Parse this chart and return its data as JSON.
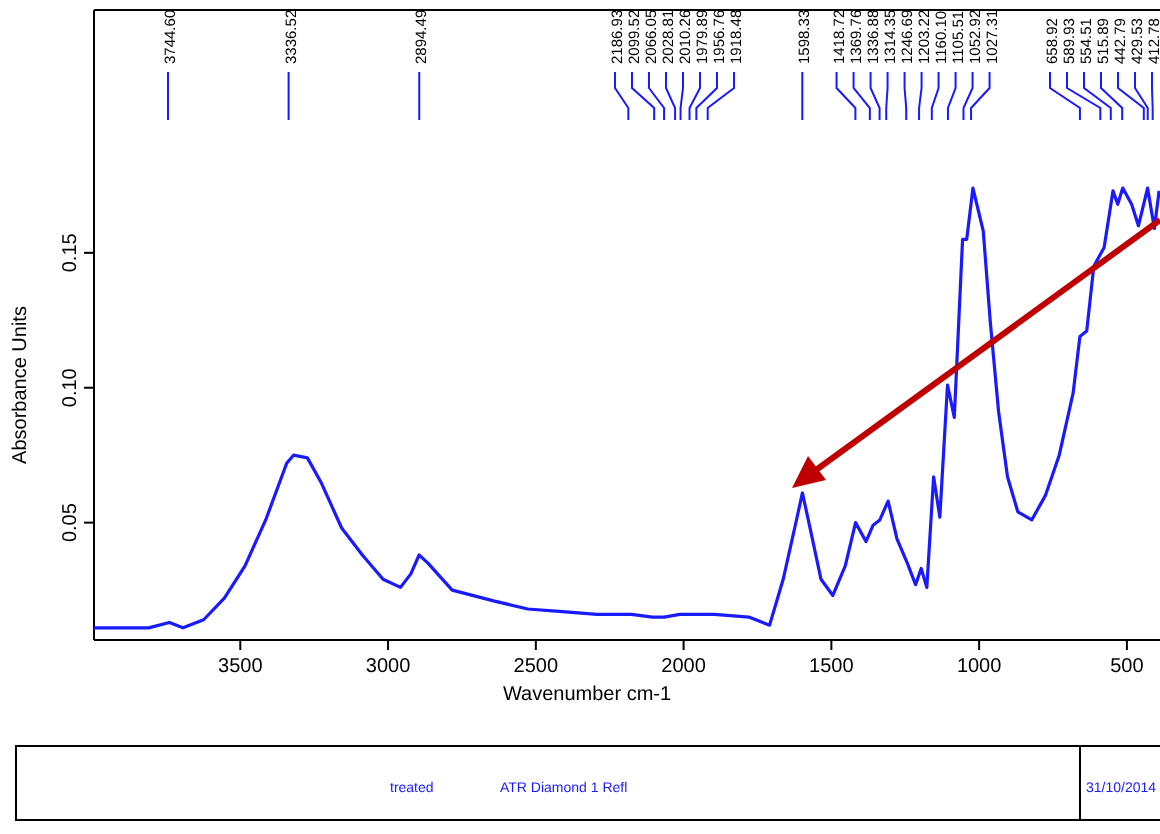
{
  "chart_data": {
    "type": "line",
    "xlabel": "Wavenumber cm-1",
    "ylabel": "Absorbance Units",
    "xlim": [
      3995,
      388
    ],
    "ylim": [
      0.0065,
      0.24
    ],
    "xticks": [
      3500,
      3000,
      2500,
      2000,
      1500,
      1000,
      500
    ],
    "yticks": [
      {
        "value": 0.05,
        "label": "0.05"
      },
      {
        "value": 0.1,
        "label": "0.10"
      },
      {
        "value": 0.15,
        "label": "0.15"
      }
    ],
    "grid": false,
    "x": [
      3995,
      3810,
      3740,
      3694,
      3624,
      3554,
      3484,
      3414,
      3343,
      3320,
      3273,
      3227,
      3157,
      3087,
      3017,
      2958,
      2923,
      2895,
      2865,
      2783,
      2643,
      2527,
      2410,
      2293,
      2176,
      2106,
      2066,
      2013,
      1980,
      1957,
      1918,
      1896,
      1779,
      1709,
      1663,
      1616,
      1598,
      1574,
      1535,
      1495,
      1453,
      1418,
      1383,
      1359,
      1336,
      1308,
      1278,
      1243,
      1215,
      1196,
      1177,
      1154,
      1133,
      1107,
      1084,
      1056,
      1042,
      1021,
      986,
      962,
      934,
      904,
      869,
      822,
      776,
      729,
      682,
      659,
      636,
      612,
      577,
      547,
      531,
      514,
      484,
      461,
      430,
      407,
      391
    ],
    "series": [
      {
        "color": "#1a1aff",
        "values": [
          0.011,
          0.011,
          0.013,
          0.011,
          0.014,
          0.022,
          0.034,
          0.051,
          0.072,
          0.075,
          0.074,
          0.065,
          0.048,
          0.038,
          0.029,
          0.026,
          0.031,
          0.038,
          0.035,
          0.025,
          0.021,
          0.018,
          0.017,
          0.016,
          0.016,
          0.015,
          0.015,
          0.016,
          0.016,
          0.016,
          0.016,
          0.016,
          0.015,
          0.012,
          0.029,
          0.052,
          0.061,
          0.049,
          0.029,
          0.023,
          0.034,
          0.05,
          0.043,
          0.049,
          0.051,
          0.058,
          0.044,
          0.035,
          0.027,
          0.033,
          0.026,
          0.067,
          0.052,
          0.101,
          0.089,
          0.155,
          0.155,
          0.174,
          0.158,
          0.124,
          0.091,
          0.067,
          0.054,
          0.051,
          0.06,
          0.075,
          0.098,
          0.119,
          0.121,
          0.145,
          0.152,
          0.173,
          0.168,
          0.174,
          0.168,
          0.16,
          0.174,
          0.159,
          0.173
        ]
      }
    ],
    "annotations": [
      {
        "text": "3744.60",
        "x": 3744.6
      },
      {
        "text": "3336.52",
        "x": 3336.52
      },
      {
        "text": "2894.49",
        "x": 2894.49
      },
      {
        "text": "2186.93",
        "x": 2186.93
      },
      {
        "text": "2099.52",
        "x": 2099.52
      },
      {
        "text": "2066.05",
        "x": 2066.05
      },
      {
        "text": "2028.81",
        "x": 2028.81
      },
      {
        "text": "2010.26",
        "x": 2010.26
      },
      {
        "text": "1979.89",
        "x": 1979.89
      },
      {
        "text": "1956.76",
        "x": 1956.76
      },
      {
        "text": "1918.48",
        "x": 1918.48
      },
      {
        "text": "1598.33",
        "x": 1598.33
      },
      {
        "text": "1418.72",
        "x": 1418.72
      },
      {
        "text": "1369.76",
        "x": 1369.76
      },
      {
        "text": "1336.88",
        "x": 1336.88
      },
      {
        "text": "1314.35",
        "x": 1314.35
      },
      {
        "text": "1246.69",
        "x": 1246.69
      },
      {
        "text": "1203.22",
        "x": 1203.22
      },
      {
        "text": "1160.10",
        "x": 1160.1
      },
      {
        "text": "1105.51",
        "x": 1105.51
      },
      {
        "text": "1052.92",
        "x": 1052.92
      },
      {
        "text": "1027.31",
        "x": 1027.31
      },
      {
        "text": "658.92",
        "x": 658.92
      },
      {
        "text": "589.93",
        "x": 589.93
      },
      {
        "text": "554.51",
        "x": 554.51
      },
      {
        "text": "515.89",
        "x": 515.89
      },
      {
        "text": "442.79",
        "x": 442.79
      },
      {
        "text": "429.53",
        "x": 429.53
      },
      {
        "text": "412.78",
        "x": 412.78
      },
      "treated",
      "ATR Diamond 1 Refl",
      "31/10/2014"
    ]
  }
}
